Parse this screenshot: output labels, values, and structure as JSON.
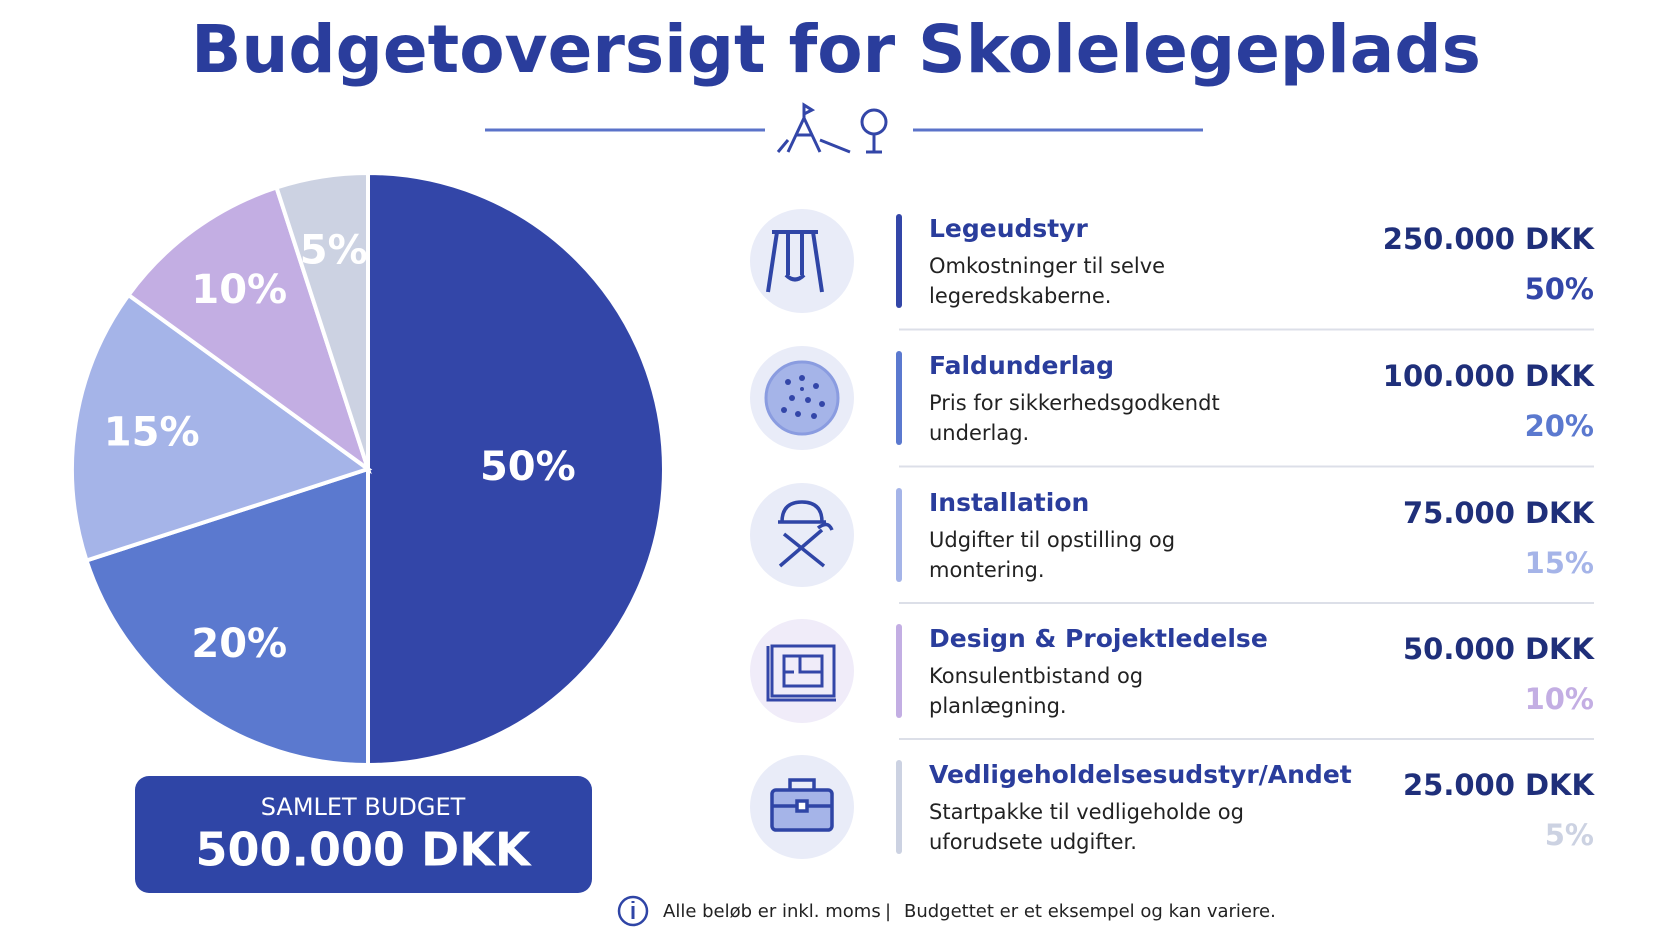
{
  "title": "Budgetoversigt for Skolelegeplads",
  "chart_data": {
    "type": "pie",
    "categories": [
      "Legeudstyr",
      "Faldunderlag",
      "Installation",
      "Design & Projektledelse",
      "Vedligeholdelsesudstyr/Andet"
    ],
    "values": [
      50,
      20,
      15,
      10,
      5
    ],
    "value_labels": [
      "50%",
      "20%",
      "15%",
      "10%",
      "5%"
    ],
    "colors": [
      "#3346a8",
      "#5b79cf",
      "#a5b4e8",
      "#c3aee3",
      "#ccd2e2"
    ]
  },
  "items": [
    {
      "description": [
        "Omkostninger til selve",
        "legeredskaberne."
      ],
      "amount": "250.000 DKK"
    },
    {
      "description": [
        "Pris for sikkerhedsgodkendt",
        "underlag."
      ],
      "amount": "100.000 DKK"
    },
    {
      "description": [
        "Udgifter til opstilling og",
        "montering."
      ],
      "amount": "75.000 DKK"
    },
    {
      "description": [
        "Konsulentbistand og",
        "planlægning."
      ],
      "amount": "50.000 DKK"
    },
    {
      "description": [
        "Startpakke til vedligeholde og",
        "uforudsete udgifter."
      ],
      "amount": "25.000 DKK"
    }
  ],
  "total": {
    "label": "SAMLET BUDGET",
    "value": "500.000 DKK"
  },
  "footer": {
    "note": "Alle beløb er inkl. moms",
    "separator": "|",
    "disclaimer": "Budgettet er et eksempel og kan variere."
  }
}
